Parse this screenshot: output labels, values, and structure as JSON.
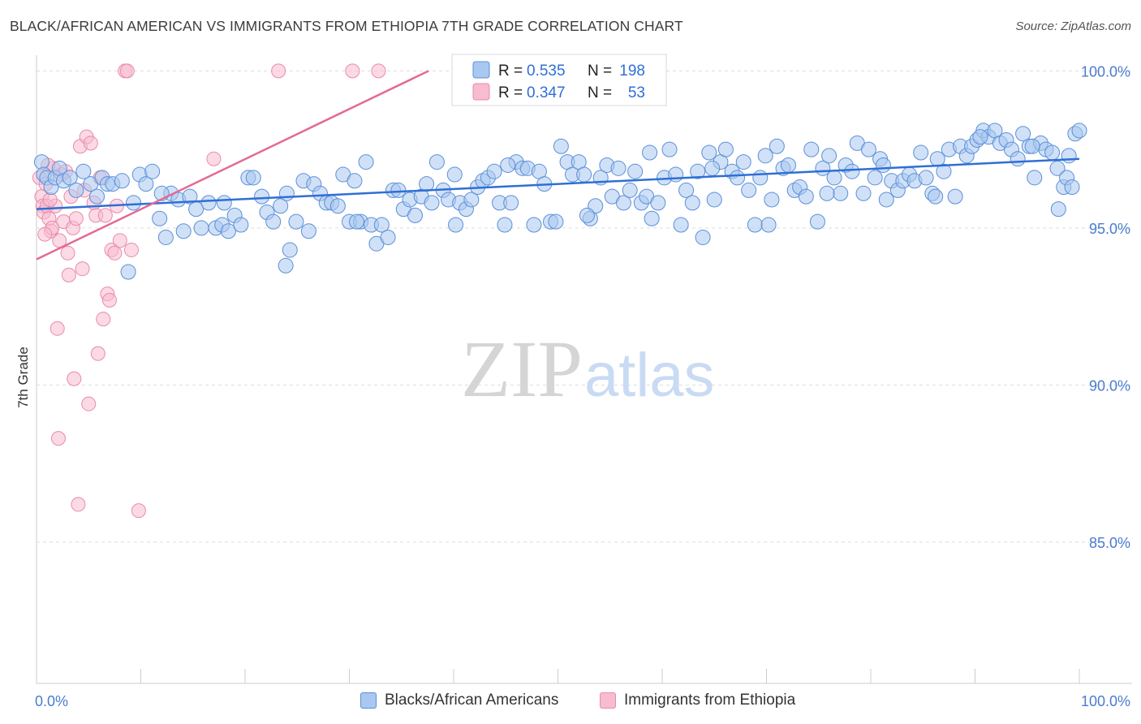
{
  "header": {
    "title": "BLACK/AFRICAN AMERICAN VS IMMIGRANTS FROM ETHIOPIA 7TH GRADE CORRELATION CHART",
    "source": "Source: ZipAtlas.com"
  },
  "watermark": {
    "part1": "ZIP",
    "part2": "atlas"
  },
  "legend_top": {
    "rows": [
      {
        "r_label": "R = ",
        "r_value": "0.535",
        "n_label": "N = ",
        "n_value": "198"
      },
      {
        "r_label": "R = ",
        "r_value": "0.347",
        "n_label": "N = ",
        "n_value": "53"
      }
    ]
  },
  "legend_bottom": {
    "items": [
      {
        "label": "Blacks/African Americans"
      },
      {
        "label": "Immigrants from Ethiopia"
      }
    ]
  },
  "colors": {
    "blue_fill": "#a9c8f0",
    "blue_stroke": "#5b8fd8",
    "blue_line": "#2f6fd6",
    "pink_fill": "#f7bcd0",
    "pink_stroke": "#e98aac",
    "pink_line": "#e36a94",
    "grid": "#dddddd",
    "axis": "#cccccc",
    "tick_text": "#4a7bd0"
  },
  "chart_data": {
    "type": "scatter",
    "title": "BLACK/AFRICAN AMERICAN VS IMMIGRANTS FROM ETHIOPIA 7TH GRADE CORRELATION CHART",
    "xlabel": "",
    "ylabel": "7th Grade",
    "xlim": [
      0,
      100
    ],
    "ylim": [
      80.5,
      100.5
    ],
    "x_tick_labels": [
      "0.0%",
      "100.0%"
    ],
    "y_ticks": [
      100,
      95,
      90,
      85
    ],
    "y_tick_labels": [
      "100.0%",
      "95.0%",
      "90.0%",
      "85.0%"
    ],
    "grid": true,
    "legend_position": "top-center",
    "series": [
      {
        "name": "Blacks/African Americans",
        "color": "#a9c8f0",
        "R": 0.535,
        "N": 198,
        "trend": {
          "x": [
            0,
            100
          ],
          "y": [
            95.6,
            97.2
          ]
        },
        "points": [
          [
            0.5,
            97.1
          ],
          [
            0.7,
            96.7
          ],
          [
            1.0,
            96.6
          ],
          [
            1.4,
            96.3
          ],
          [
            1.8,
            96.6
          ],
          [
            2.2,
            96.9
          ],
          [
            2.6,
            96.5
          ],
          [
            3.2,
            96.6
          ],
          [
            3.8,
            96.2
          ],
          [
            4.5,
            96.8
          ],
          [
            5.2,
            96.4
          ],
          [
            5.8,
            96.0
          ],
          [
            6.3,
            96.6
          ],
          [
            6.8,
            96.4
          ],
          [
            7.3,
            96.4
          ],
          [
            8.2,
            96.5
          ],
          [
            8.8,
            93.6
          ],
          [
            9.3,
            95.8
          ],
          [
            9.9,
            96.7
          ],
          [
            10.5,
            96.4
          ],
          [
            11.1,
            96.8
          ],
          [
            11.8,
            95.3
          ],
          [
            12.4,
            94.7
          ],
          [
            12.9,
            96.1
          ],
          [
            13.6,
            95.9
          ],
          [
            14.1,
            94.9
          ],
          [
            14.7,
            96.0
          ],
          [
            15.3,
            95.6
          ],
          [
            15.8,
            95.0
          ],
          [
            16.5,
            95.8
          ],
          [
            17.2,
            95.0
          ],
          [
            17.8,
            95.1
          ],
          [
            18.4,
            94.9
          ],
          [
            19.0,
            95.4
          ],
          [
            19.6,
            95.1
          ],
          [
            20.3,
            96.6
          ],
          [
            20.8,
            96.6
          ],
          [
            21.6,
            96.0
          ],
          [
            22.1,
            95.5
          ],
          [
            22.7,
            95.2
          ],
          [
            23.4,
            95.7
          ],
          [
            23.9,
            93.8
          ],
          [
            24.3,
            94.3
          ],
          [
            24.9,
            95.2
          ],
          [
            25.6,
            96.5
          ],
          [
            26.1,
            94.9
          ],
          [
            26.6,
            96.4
          ],
          [
            27.2,
            96.1
          ],
          [
            27.8,
            95.8
          ],
          [
            28.3,
            95.8
          ],
          [
            28.9,
            95.7
          ],
          [
            29.4,
            96.7
          ],
          [
            30.0,
            95.2
          ],
          [
            30.5,
            96.5
          ],
          [
            31.1,
            95.2
          ],
          [
            31.6,
            97.1
          ],
          [
            32.1,
            95.1
          ],
          [
            32.6,
            94.5
          ],
          [
            33.1,
            95.1
          ],
          [
            33.7,
            94.7
          ],
          [
            34.2,
            96.2
          ],
          [
            34.7,
            96.2
          ],
          [
            35.2,
            95.6
          ],
          [
            35.8,
            95.9
          ],
          [
            36.3,
            95.4
          ],
          [
            36.9,
            96.0
          ],
          [
            37.4,
            96.4
          ],
          [
            37.9,
            95.8
          ],
          [
            38.4,
            97.1
          ],
          [
            39.0,
            96.2
          ],
          [
            39.5,
            95.9
          ],
          [
            40.1,
            96.7
          ],
          [
            40.6,
            95.8
          ],
          [
            41.2,
            95.6
          ],
          [
            41.7,
            95.9
          ],
          [
            42.3,
            96.3
          ],
          [
            42.8,
            96.5
          ],
          [
            43.3,
            96.6
          ],
          [
            43.9,
            96.8
          ],
          [
            44.4,
            95.8
          ],
          [
            44.9,
            95.1
          ],
          [
            45.5,
            95.8
          ],
          [
            46.0,
            97.1
          ],
          [
            46.6,
            96.9
          ],
          [
            47.1,
            96.9
          ],
          [
            47.7,
            95.1
          ],
          [
            48.2,
            96.8
          ],
          [
            48.7,
            96.4
          ],
          [
            49.3,
            95.2
          ],
          [
            49.8,
            95.2
          ],
          [
            50.3,
            97.6
          ],
          [
            50.9,
            97.1
          ],
          [
            51.4,
            96.7
          ],
          [
            52.0,
            97.1
          ],
          [
            52.5,
            96.7
          ],
          [
            53.1,
            95.3
          ],
          [
            53.6,
            95.7
          ],
          [
            54.1,
            96.6
          ],
          [
            54.7,
            97.0
          ],
          [
            55.2,
            96.0
          ],
          [
            55.8,
            96.9
          ],
          [
            56.3,
            95.8
          ],
          [
            56.9,
            96.2
          ],
          [
            57.4,
            96.8
          ],
          [
            58.0,
            95.8
          ],
          [
            58.5,
            96.0
          ],
          [
            59.0,
            95.3
          ],
          [
            59.6,
            95.8
          ],
          [
            60.2,
            96.6
          ],
          [
            60.7,
            97.5
          ],
          [
            61.3,
            96.7
          ],
          [
            61.8,
            95.1
          ],
          [
            62.3,
            96.2
          ],
          [
            62.9,
            95.8
          ],
          [
            63.4,
            96.8
          ],
          [
            63.9,
            94.7
          ],
          [
            64.5,
            97.4
          ],
          [
            65.0,
            95.9
          ],
          [
            65.6,
            97.1
          ],
          [
            66.1,
            97.5
          ],
          [
            66.7,
            96.8
          ],
          [
            67.2,
            96.6
          ],
          [
            67.8,
            97.1
          ],
          [
            68.3,
            96.2
          ],
          [
            68.9,
            95.1
          ],
          [
            69.4,
            96.6
          ],
          [
            69.9,
            97.3
          ],
          [
            70.5,
            95.9
          ],
          [
            71.0,
            97.6
          ],
          [
            71.6,
            96.9
          ],
          [
            72.1,
            97.0
          ],
          [
            72.7,
            96.2
          ],
          [
            73.2,
            96.3
          ],
          [
            73.8,
            96.0
          ],
          [
            74.3,
            97.5
          ],
          [
            74.9,
            95.2
          ],
          [
            75.4,
            96.9
          ],
          [
            76.0,
            97.3
          ],
          [
            76.5,
            96.6
          ],
          [
            77.1,
            96.1
          ],
          [
            77.6,
            97.0
          ],
          [
            78.2,
            96.8
          ],
          [
            78.7,
            97.7
          ],
          [
            79.3,
            96.1
          ],
          [
            79.8,
            97.5
          ],
          [
            80.4,
            96.6
          ],
          [
            80.9,
            97.2
          ],
          [
            81.5,
            95.9
          ],
          [
            82.0,
            96.5
          ],
          [
            82.6,
            96.2
          ],
          [
            83.1,
            96.5
          ],
          [
            83.7,
            96.7
          ],
          [
            84.2,
            96.5
          ],
          [
            84.8,
            97.4
          ],
          [
            85.3,
            96.6
          ],
          [
            85.9,
            96.1
          ],
          [
            86.4,
            97.2
          ],
          [
            87.0,
            96.8
          ],
          [
            87.5,
            97.5
          ],
          [
            88.1,
            96.0
          ],
          [
            88.6,
            97.6
          ],
          [
            89.2,
            97.3
          ],
          [
            89.7,
            97.6
          ],
          [
            90.2,
            97.8
          ],
          [
            90.8,
            98.1
          ],
          [
            91.3,
            97.9
          ],
          [
            91.9,
            98.1
          ],
          [
            92.4,
            97.7
          ],
          [
            93.0,
            97.8
          ],
          [
            93.5,
            97.5
          ],
          [
            94.1,
            97.2
          ],
          [
            94.6,
            98.0
          ],
          [
            95.2,
            97.6
          ],
          [
            95.7,
            96.6
          ],
          [
            96.3,
            97.7
          ],
          [
            96.8,
            97.5
          ],
          [
            97.4,
            97.4
          ],
          [
            97.9,
            96.9
          ],
          [
            98.5,
            96.3
          ],
          [
            99.0,
            97.3
          ],
          [
            99.6,
            98.0
          ],
          [
            30.7,
            95.2
          ],
          [
            40.2,
            95.1
          ],
          [
            45.2,
            97.0
          ],
          [
            52.8,
            95.4
          ],
          [
            58.8,
            97.4
          ],
          [
            64.8,
            96.9
          ],
          [
            70.2,
            95.1
          ],
          [
            75.8,
            96.1
          ],
          [
            81.2,
            97.0
          ],
          [
            86.2,
            96.0
          ],
          [
            90.5,
            97.9
          ],
          [
            95.5,
            97.6
          ],
          [
            98.0,
            95.6
          ],
          [
            98.8,
            96.6
          ],
          [
            99.3,
            96.3
          ],
          [
            100.0,
            98.1
          ],
          [
            12.0,
            96.1
          ],
          [
            18.0,
            95.8
          ],
          [
            24.0,
            96.1
          ]
        ]
      },
      {
        "name": "Immigrants from Ethiopia",
        "color": "#f7bcd0",
        "R": 0.347,
        "N": 53,
        "trend": {
          "x": [
            0,
            37.6
          ],
          "y": [
            94.0,
            100.0
          ]
        },
        "points": [
          [
            0.3,
            96.6
          ],
          [
            0.5,
            96.0
          ],
          [
            0.6,
            95.7
          ],
          [
            0.7,
            95.5
          ],
          [
            0.9,
            96.4
          ],
          [
            1.0,
            95.7
          ],
          [
            1.2,
            95.3
          ],
          [
            1.4,
            94.9
          ],
          [
            1.5,
            95.0
          ],
          [
            1.6,
            96.9
          ],
          [
            1.8,
            95.7
          ],
          [
            2.0,
            91.8
          ],
          [
            2.1,
            88.3
          ],
          [
            2.2,
            94.6
          ],
          [
            2.4,
            96.7
          ],
          [
            2.6,
            95.2
          ],
          [
            2.8,
            96.8
          ],
          [
            3.0,
            94.2
          ],
          [
            3.1,
            93.5
          ],
          [
            3.3,
            96.0
          ],
          [
            3.5,
            95.0
          ],
          [
            3.6,
            90.2
          ],
          [
            3.8,
            95.3
          ],
          [
            4.0,
            86.2
          ],
          [
            4.2,
            97.6
          ],
          [
            4.4,
            93.7
          ],
          [
            4.6,
            96.2
          ],
          [
            4.8,
            97.9
          ],
          [
            5.0,
            89.4
          ],
          [
            5.2,
            97.7
          ],
          [
            5.5,
            95.8
          ],
          [
            5.7,
            95.4
          ],
          [
            5.9,
            91.0
          ],
          [
            6.1,
            96.6
          ],
          [
            6.4,
            92.1
          ],
          [
            6.6,
            95.4
          ],
          [
            6.8,
            92.9
          ],
          [
            7.0,
            92.7
          ],
          [
            7.2,
            94.3
          ],
          [
            7.5,
            94.2
          ],
          [
            7.7,
            95.7
          ],
          [
            8.0,
            94.6
          ],
          [
            8.5,
            100.0
          ],
          [
            8.7,
            100.0
          ],
          [
            9.1,
            94.3
          ],
          [
            9.8,
            86.0
          ],
          [
            17.0,
            97.2
          ],
          [
            23.2,
            100.0
          ],
          [
            30.3,
            100.0
          ],
          [
            32.8,
            100.0
          ],
          [
            0.8,
            94.8
          ],
          [
            1.1,
            97.0
          ],
          [
            1.3,
            95.9
          ]
        ]
      }
    ]
  }
}
